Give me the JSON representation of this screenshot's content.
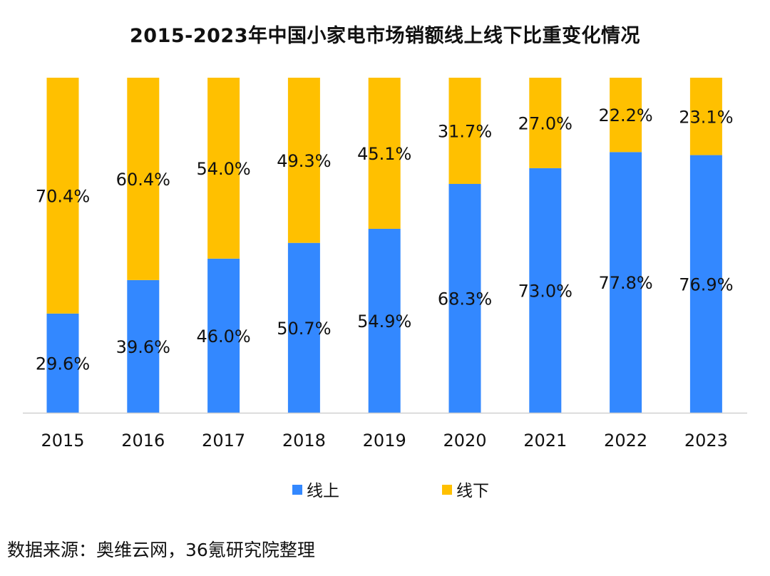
{
  "colors": {
    "online": "#3388FF",
    "offline": "#FFC000",
    "axis": "#d0d0d0",
    "text": "#111111"
  },
  "chart_data": {
    "type": "bar",
    "stacked": true,
    "percent": true,
    "title": "2015-2023年中国小家电市场销额线上线下比重变化情况",
    "categories": [
      "2015",
      "2016",
      "2017",
      "2018",
      "2019",
      "2020",
      "2021",
      "2022",
      "2023"
    ],
    "series": [
      {
        "name": "线上",
        "values": [
          29.6,
          39.6,
          46.0,
          50.7,
          54.9,
          68.3,
          73.0,
          77.8,
          76.9
        ],
        "labels": [
          "29.6%",
          "39.6%",
          "46.0%",
          "50.7%",
          "54.9%",
          "68.3%",
          "73.0%",
          "77.8%",
          "76.9%"
        ]
      },
      {
        "name": "线下",
        "values": [
          70.4,
          60.4,
          54.0,
          49.3,
          45.1,
          31.7,
          27.0,
          22.2,
          23.1
        ],
        "labels": [
          "70.4%",
          "60.4%",
          "54.0%",
          "49.3%",
          "45.1%",
          "31.7%",
          "27.0%",
          "22.2%",
          "23.1%"
        ]
      }
    ],
    "ylim": [
      0,
      100
    ],
    "xlabel": "",
    "ylabel": "",
    "legend": "bottom-center",
    "grid": false
  },
  "source": "数据来源：奥维云网，36氪研究院整理"
}
